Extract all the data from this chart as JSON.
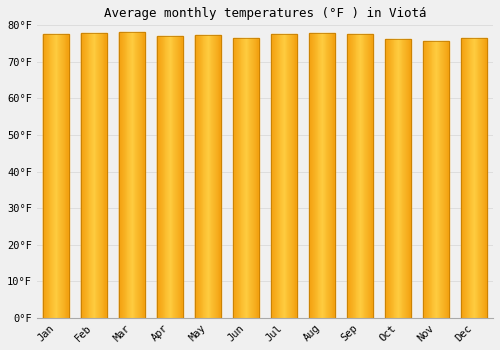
{
  "title": "Average monthly temperatures (°F ) in Viotá",
  "months": [
    "Jan",
    "Feb",
    "Mar",
    "Apr",
    "May",
    "Jun",
    "Jul",
    "Aug",
    "Sep",
    "Oct",
    "Nov",
    "Dec"
  ],
  "values": [
    77.5,
    77.9,
    78.1,
    77.2,
    77.3,
    76.6,
    77.5,
    77.9,
    77.5,
    76.3,
    75.7,
    76.6
  ],
  "bar_color_dark": [
    0.95,
    0.62,
    0.05
  ],
  "bar_color_light": [
    1.0,
    0.8,
    0.25
  ],
  "bar_edge_color": "#BB7700",
  "ylim": [
    0,
    80
  ],
  "yticks": [
    0,
    10,
    20,
    30,
    40,
    50,
    60,
    70,
    80
  ],
  "bg_color": "#f0f0f0",
  "grid_color": "#dddddd",
  "title_fontsize": 9,
  "tick_fontsize": 7.5,
  "font_family": "monospace",
  "bar_width": 0.7,
  "gradient_steps": 30
}
